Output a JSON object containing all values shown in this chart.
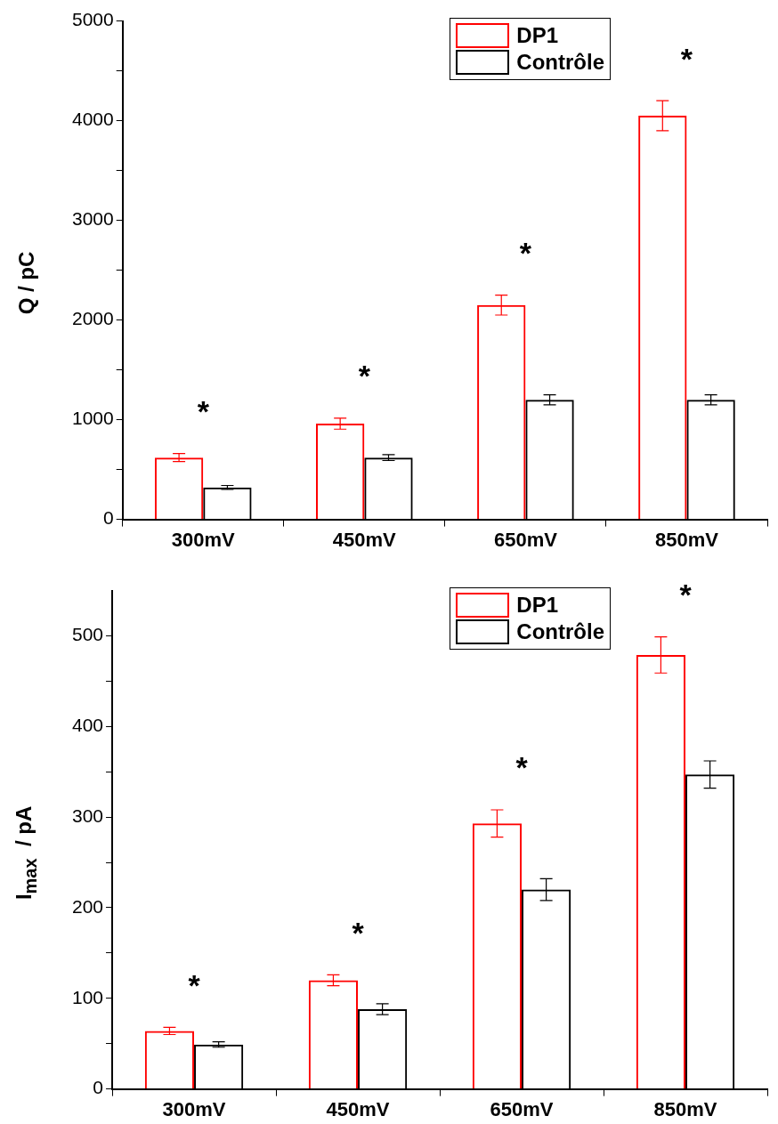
{
  "chart_data": [
    {
      "type": "bar",
      "ylabel": "Q / pC",
      "categories": [
        "300mV",
        "450mV",
        "650mV",
        "850mV"
      ],
      "series": [
        {
          "name": "DP1",
          "color": "#ff0000",
          "values": [
            620,
            960,
            2150,
            4050
          ],
          "errors": [
            40,
            55,
            100,
            150
          ]
        },
        {
          "name": "Contrôle",
          "color": "#000000",
          "values": [
            320,
            620,
            1200,
            1200
          ],
          "errors": [
            20,
            30,
            50,
            50
          ]
        }
      ],
      "ylim": [
        0,
        5000
      ],
      "yticks": [
        0,
        {
          "value": 500,
          "label": null
        },
        1000,
        {
          "value": 1500,
          "label": null
        },
        2000,
        {
          "value": 2500,
          "label": null
        },
        3000,
        {
          "value": 3500,
          "label": null
        },
        4000,
        {
          "value": 4500,
          "label": null
        },
        5000
      ],
      "annotations": [
        "*",
        "*",
        "*",
        "*"
      ],
      "legend": "top right"
    },
    {
      "type": "bar",
      "ylabel": "I$_{max}$  / pA",
      "categories": [
        "300mV",
        "450mV",
        "650mV",
        "850mV"
      ],
      "series": [
        {
          "name": "DP1",
          "color": "#ff0000",
          "values": [
            64,
            120,
            293,
            479
          ],
          "errors": [
            4,
            6,
            15,
            20
          ]
        },
        {
          "name": "Contrôle",
          "color": "#000000",
          "values": [
            49,
            88,
            220,
            347
          ],
          "errors": [
            3,
            6,
            12,
            15
          ]
        }
      ],
      "ylim": [
        0,
        550
      ],
      "yticks": [
        0,
        {
          "value": 50,
          "label": null
        },
        100,
        {
          "value": 150,
          "label": null
        },
        200,
        {
          "value": 250,
          "label": null
        },
        300,
        {
          "value": 350,
          "label": null
        },
        400,
        {
          "value": 450,
          "label": null
        },
        500
      ],
      "annotations": [
        "*",
        "*",
        "*",
        "*"
      ],
      "legend": "top right"
    }
  ]
}
